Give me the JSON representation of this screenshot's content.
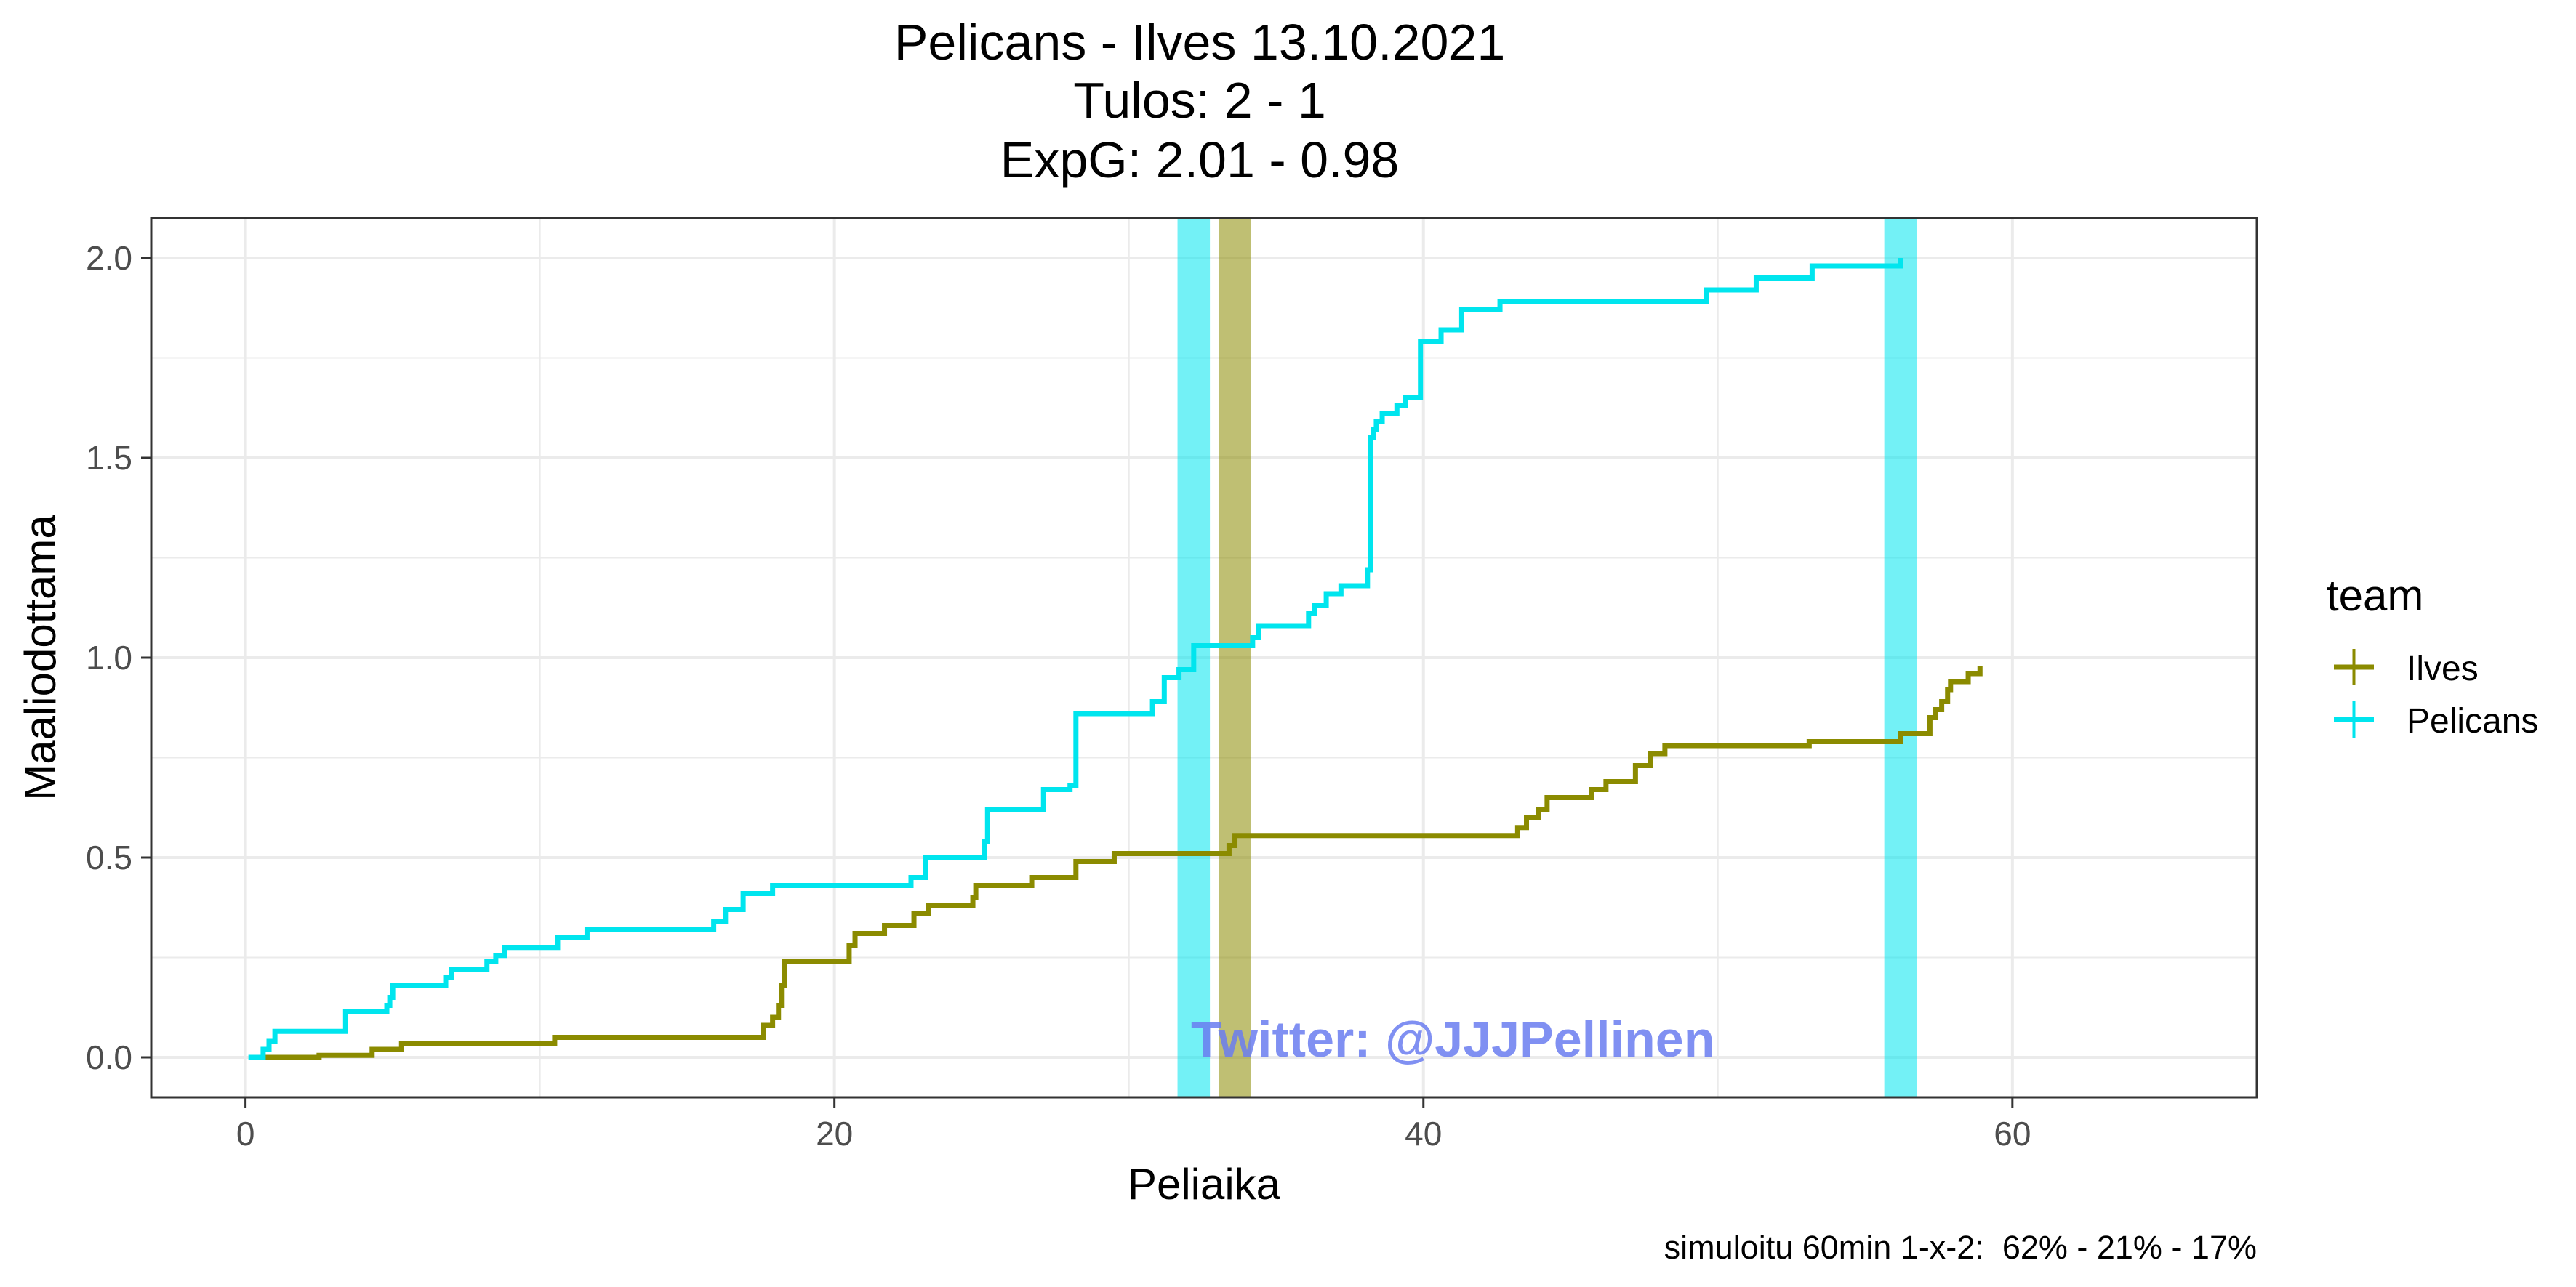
{
  "chart_data": {
    "type": "line",
    "title": "Pelicans - Ilves 13.10.2021",
    "subtitle_lines": [
      "Tulos: 2 - 1",
      "ExpG: 2.01 - 0.98"
    ],
    "xlabel": "Peliaika",
    "ylabel": "Maaliodottama",
    "xlim": [
      -3.2,
      68.3
    ],
    "ylim": [
      -0.1,
      2.1
    ],
    "x_ticks": [
      0,
      20,
      40,
      60
    ],
    "y_ticks": [
      0.0,
      0.5,
      1.0,
      1.5,
      2.0
    ],
    "x_tick_labels": [
      "0",
      "20",
      "40",
      "60"
    ],
    "y_tick_labels": [
      "0.0",
      "0.5",
      "1.0",
      "1.5",
      "2.0"
    ],
    "grid": true,
    "legend": {
      "title": "team",
      "placement": "right",
      "entries": [
        "Ilves",
        "Pelicans"
      ]
    },
    "caption": "simuloitu 60min 1-x-2:  62% - 21% - 17%",
    "watermark": "Twitter: @JJJPellinen",
    "goals": [
      {
        "team": "Pelicans",
        "time": 32.2,
        "color": "#00e5ee"
      },
      {
        "team": "Ilves",
        "time": 33.6,
        "color": "#8b8b00"
      },
      {
        "team": "Pelicans",
        "time": 56.2,
        "color": "#00e5ee"
      }
    ],
    "series": [
      {
        "name": "Ilves",
        "color": "#8b8b00",
        "step_points": [
          [
            0.2,
            0
          ],
          [
            2.5,
            0.005
          ],
          [
            4.3,
            0.02
          ],
          [
            5.3,
            0.035
          ],
          [
            10.5,
            0.05
          ],
          [
            17.6,
            0.08
          ],
          [
            17.9,
            0.1
          ],
          [
            18.1,
            0.13
          ],
          [
            18.2,
            0.18
          ],
          [
            18.3,
            0.24
          ],
          [
            20.5,
            0.28
          ],
          [
            20.7,
            0.31
          ],
          [
            21.7,
            0.33
          ],
          [
            22.7,
            0.36
          ],
          [
            23.2,
            0.38
          ],
          [
            24.7,
            0.4
          ],
          [
            24.8,
            0.43
          ],
          [
            26.7,
            0.45
          ],
          [
            28.2,
            0.49
          ],
          [
            29.4,
            0.49
          ],
          [
            29.5,
            0.51
          ],
          [
            33.3,
            0.51
          ],
          [
            33.4,
            0.53
          ],
          [
            33.6,
            0.555
          ],
          [
            43.2,
            0.575
          ],
          [
            43.5,
            0.6
          ],
          [
            43.9,
            0.62
          ],
          [
            44.2,
            0.65
          ],
          [
            45.7,
            0.67
          ],
          [
            46.2,
            0.69
          ],
          [
            47.2,
            0.73
          ],
          [
            47.7,
            0.76
          ],
          [
            48.2,
            0.78
          ],
          [
            53.1,
            0.79
          ],
          [
            56.2,
            0.81
          ],
          [
            57.2,
            0.85
          ],
          [
            57.4,
            0.87
          ],
          [
            57.6,
            0.89
          ],
          [
            57.8,
            0.92
          ],
          [
            57.9,
            0.94
          ],
          [
            58.5,
            0.96
          ],
          [
            58.9,
            0.98
          ]
        ]
      },
      {
        "name": "Pelicans",
        "color": "#00e5ee",
        "step_points": [
          [
            0.1,
            0
          ],
          [
            0.6,
            0.02
          ],
          [
            0.8,
            0.04
          ],
          [
            1.0,
            0.065
          ],
          [
            3.4,
            0.115
          ],
          [
            4.8,
            0.13
          ],
          [
            4.9,
            0.15
          ],
          [
            5.0,
            0.18
          ],
          [
            6.8,
            0.2
          ],
          [
            7.0,
            0.22
          ],
          [
            8.2,
            0.24
          ],
          [
            8.5,
            0.255
          ],
          [
            8.8,
            0.275
          ],
          [
            10.6,
            0.3
          ],
          [
            11.6,
            0.32
          ],
          [
            15.9,
            0.34
          ],
          [
            16.3,
            0.37
          ],
          [
            16.9,
            0.41
          ],
          [
            17.9,
            0.43
          ],
          [
            22.6,
            0.45
          ],
          [
            23.1,
            0.5
          ],
          [
            25.1,
            0.54
          ],
          [
            25.2,
            0.62
          ],
          [
            27.1,
            0.67
          ],
          [
            28.0,
            0.68
          ],
          [
            28.2,
            0.86
          ],
          [
            30.8,
            0.89
          ],
          [
            31.2,
            0.95
          ],
          [
            31.7,
            0.97
          ],
          [
            32.2,
            1.03
          ],
          [
            34.2,
            1.05
          ],
          [
            34.4,
            1.08
          ],
          [
            36.1,
            1.11
          ],
          [
            36.3,
            1.13
          ],
          [
            36.7,
            1.16
          ],
          [
            37.2,
            1.18
          ],
          [
            38.1,
            1.22
          ],
          [
            38.2,
            1.55
          ],
          [
            38.3,
            1.57
          ],
          [
            38.4,
            1.59
          ],
          [
            38.6,
            1.61
          ],
          [
            39.1,
            1.63
          ],
          [
            39.4,
            1.65
          ],
          [
            39.9,
            1.79
          ],
          [
            40.6,
            1.82
          ],
          [
            41.3,
            1.87
          ],
          [
            42.6,
            1.89
          ],
          [
            49.6,
            1.92
          ],
          [
            51.3,
            1.95
          ],
          [
            53.2,
            1.98
          ],
          [
            56.2,
            2.0
          ]
        ]
      }
    ]
  }
}
